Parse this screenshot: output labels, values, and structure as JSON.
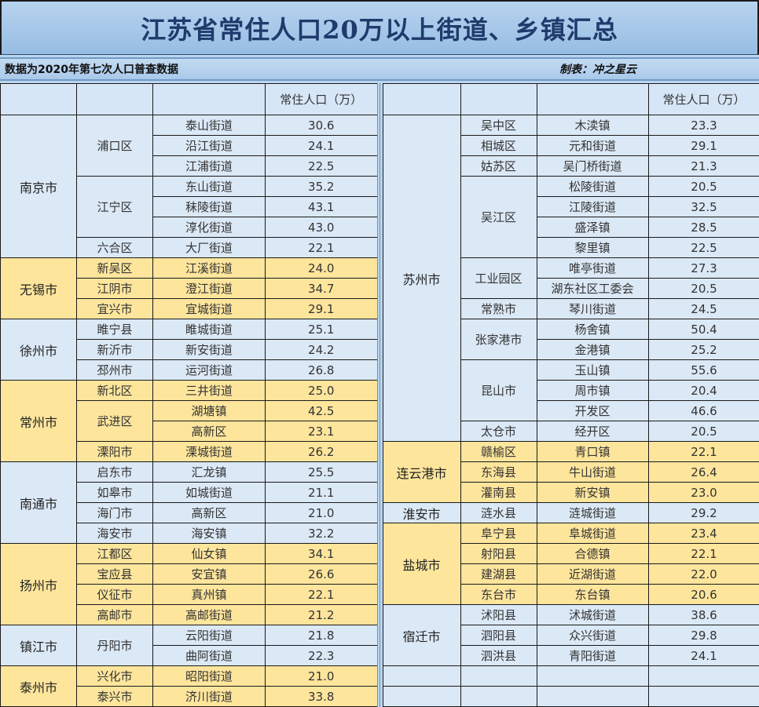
{
  "title": "江苏省常住人口20万以上街道、乡镇汇总",
  "subtitle": "数据为2020年第七次人口普查数据",
  "maker": "制表：冲之星云",
  "header": {
    "col1": "",
    "col2": "",
    "col3": "",
    "col4": "常住人口（万）"
  },
  "colors": {
    "blue": "#dbe8f6",
    "yellow": "#fde59c",
    "title_text": "#1f3a6b"
  },
  "left": [
    {
      "name": "南京市",
      "color": "blue",
      "districts": [
        {
          "name": "浦口区",
          "streets": [
            [
              "泰山街道",
              "30.6"
            ],
            [
              "沿江街道",
              "24.1"
            ],
            [
              "江浦街道",
              "22.5"
            ]
          ]
        },
        {
          "name": "江宁区",
          "streets": [
            [
              "东山街道",
              "35.2"
            ],
            [
              "秣陵街道",
              "43.1"
            ],
            [
              "淳化街道",
              "43.0"
            ]
          ]
        },
        {
          "name": "六合区",
          "streets": [
            [
              "大厂街道",
              "22.1"
            ]
          ]
        }
      ]
    },
    {
      "name": "无锡市",
      "color": "yellow",
      "districts": [
        {
          "name": "新吴区",
          "streets": [
            [
              "江溪街道",
              "24.0"
            ]
          ]
        },
        {
          "name": "江阴市",
          "streets": [
            [
              "澄江街道",
              "34.7"
            ]
          ]
        },
        {
          "name": "宜兴市",
          "streets": [
            [
              "宜城街道",
              "29.1"
            ]
          ]
        }
      ]
    },
    {
      "name": "徐州市",
      "color": "blue",
      "districts": [
        {
          "name": "睢宁县",
          "streets": [
            [
              "睢城街道",
              "25.1"
            ]
          ]
        },
        {
          "name": "新沂市",
          "streets": [
            [
              "新安街道",
              "24.2"
            ]
          ]
        },
        {
          "name": "邳州市",
          "streets": [
            [
              "运河街道",
              "26.8"
            ]
          ]
        }
      ]
    },
    {
      "name": "常州市",
      "color": "yellow",
      "districts": [
        {
          "name": "新北区",
          "streets": [
            [
              "三井街道",
              "25.0"
            ]
          ]
        },
        {
          "name": "武进区",
          "streets": [
            [
              "湖塘镇",
              "42.5"
            ],
            [
              "高新区",
              "23.1"
            ]
          ]
        },
        {
          "name": "溧阳市",
          "streets": [
            [
              "溧城街道",
              "26.2"
            ]
          ]
        }
      ]
    },
    {
      "name": "南通市",
      "color": "blue",
      "districts": [
        {
          "name": "启东市",
          "streets": [
            [
              "汇龙镇",
              "25.5"
            ]
          ]
        },
        {
          "name": "如皋市",
          "streets": [
            [
              "如城街道",
              "21.1"
            ]
          ]
        },
        {
          "name": "海门市",
          "streets": [
            [
              "高新区",
              "21.0"
            ]
          ]
        },
        {
          "name": "海安市",
          "streets": [
            [
              "海安镇",
              "32.2"
            ]
          ]
        }
      ]
    },
    {
      "name": "扬州市",
      "color": "yellow",
      "districts": [
        {
          "name": "江都区",
          "streets": [
            [
              "仙女镇",
              "34.1"
            ]
          ]
        },
        {
          "name": "宝应县",
          "streets": [
            [
              "安宜镇",
              "26.6"
            ]
          ]
        },
        {
          "name": "仪征市",
          "streets": [
            [
              "真州镇",
              "22.1"
            ]
          ]
        },
        {
          "name": "高邮市",
          "streets": [
            [
              "高邮街道",
              "21.2"
            ]
          ]
        }
      ]
    },
    {
      "name": "镇江市",
      "color": "blue",
      "districts": [
        {
          "name": "丹阳市",
          "streets": [
            [
              "云阳街道",
              "21.8"
            ],
            [
              "曲阿街道",
              "22.3"
            ]
          ]
        }
      ]
    },
    {
      "name": "泰州市",
      "color": "yellow",
      "districts": [
        {
          "name": "兴化市",
          "streets": [
            [
              "昭阳街道",
              "21.0"
            ]
          ]
        },
        {
          "name": "泰兴市",
          "streets": [
            [
              "济川街道",
              "33.8"
            ]
          ]
        }
      ]
    }
  ],
  "right": [
    {
      "name": "苏州市",
      "color": "blue",
      "districts": [
        {
          "name": "吴中区",
          "streets": [
            [
              "木渎镇",
              "23.3"
            ]
          ]
        },
        {
          "name": "相城区",
          "streets": [
            [
              "元和街道",
              "29.1"
            ]
          ]
        },
        {
          "name": "姑苏区",
          "streets": [
            [
              "吴门桥街道",
              "21.3"
            ]
          ]
        },
        {
          "name": "吴江区",
          "streets": [
            [
              "松陵街道",
              "20.5"
            ],
            [
              "江陵街道",
              "32.5"
            ],
            [
              "盛泽镇",
              "28.5"
            ],
            [
              "黎里镇",
              "22.5"
            ]
          ]
        },
        {
          "name": "工业园区",
          "streets": [
            [
              "唯亭街道",
              "27.3"
            ],
            [
              "湖东社区工委会",
              "20.5"
            ]
          ]
        },
        {
          "name": "常熟市",
          "streets": [
            [
              "琴川街道",
              "24.5"
            ]
          ]
        },
        {
          "name": "张家港市",
          "streets": [
            [
              "杨舍镇",
              "50.4"
            ],
            [
              "金港镇",
              "25.2"
            ]
          ]
        },
        {
          "name": "昆山市",
          "streets": [
            [
              "玉山镇",
              "55.6"
            ],
            [
              "周市镇",
              "20.4"
            ],
            [
              "开发区",
              "46.6"
            ]
          ]
        },
        {
          "name": "太仓市",
          "streets": [
            [
              "经开区",
              "20.5"
            ]
          ]
        }
      ]
    },
    {
      "name": "连云港市",
      "color": "yellow",
      "districts": [
        {
          "name": "赣榆区",
          "streets": [
            [
              "青口镇",
              "22.1"
            ]
          ]
        },
        {
          "name": "东海县",
          "streets": [
            [
              "牛山街道",
              "26.4"
            ]
          ]
        },
        {
          "name": "灌南县",
          "streets": [
            [
              "新安镇",
              "23.0"
            ]
          ]
        }
      ]
    },
    {
      "name": "淮安市",
      "color": "blue",
      "districts": [
        {
          "name": "涟水县",
          "streets": [
            [
              "涟城街道",
              "29.2"
            ]
          ]
        }
      ]
    },
    {
      "name": "盐城市",
      "color": "yellow",
      "districts": [
        {
          "name": "阜宁县",
          "streets": [
            [
              "阜城街道",
              "23.4"
            ]
          ]
        },
        {
          "name": "射阳县",
          "streets": [
            [
              "合德镇",
              "22.1"
            ]
          ]
        },
        {
          "name": "建湖县",
          "streets": [
            [
              "近湖街道",
              "22.0"
            ]
          ]
        },
        {
          "name": "东台市",
          "streets": [
            [
              "东台镇",
              "20.6"
            ]
          ]
        }
      ]
    },
    {
      "name": "宿迁市",
      "color": "blue",
      "districts": [
        {
          "name": "沭阳县",
          "streets": [
            [
              "沭城街道",
              "38.6"
            ]
          ]
        },
        {
          "name": "泗阳县",
          "streets": [
            [
              "众兴街道",
              "29.8"
            ]
          ]
        },
        {
          "name": "泗洪县",
          "streets": [
            [
              "青阳街道",
              "24.1"
            ]
          ]
        }
      ]
    }
  ]
}
